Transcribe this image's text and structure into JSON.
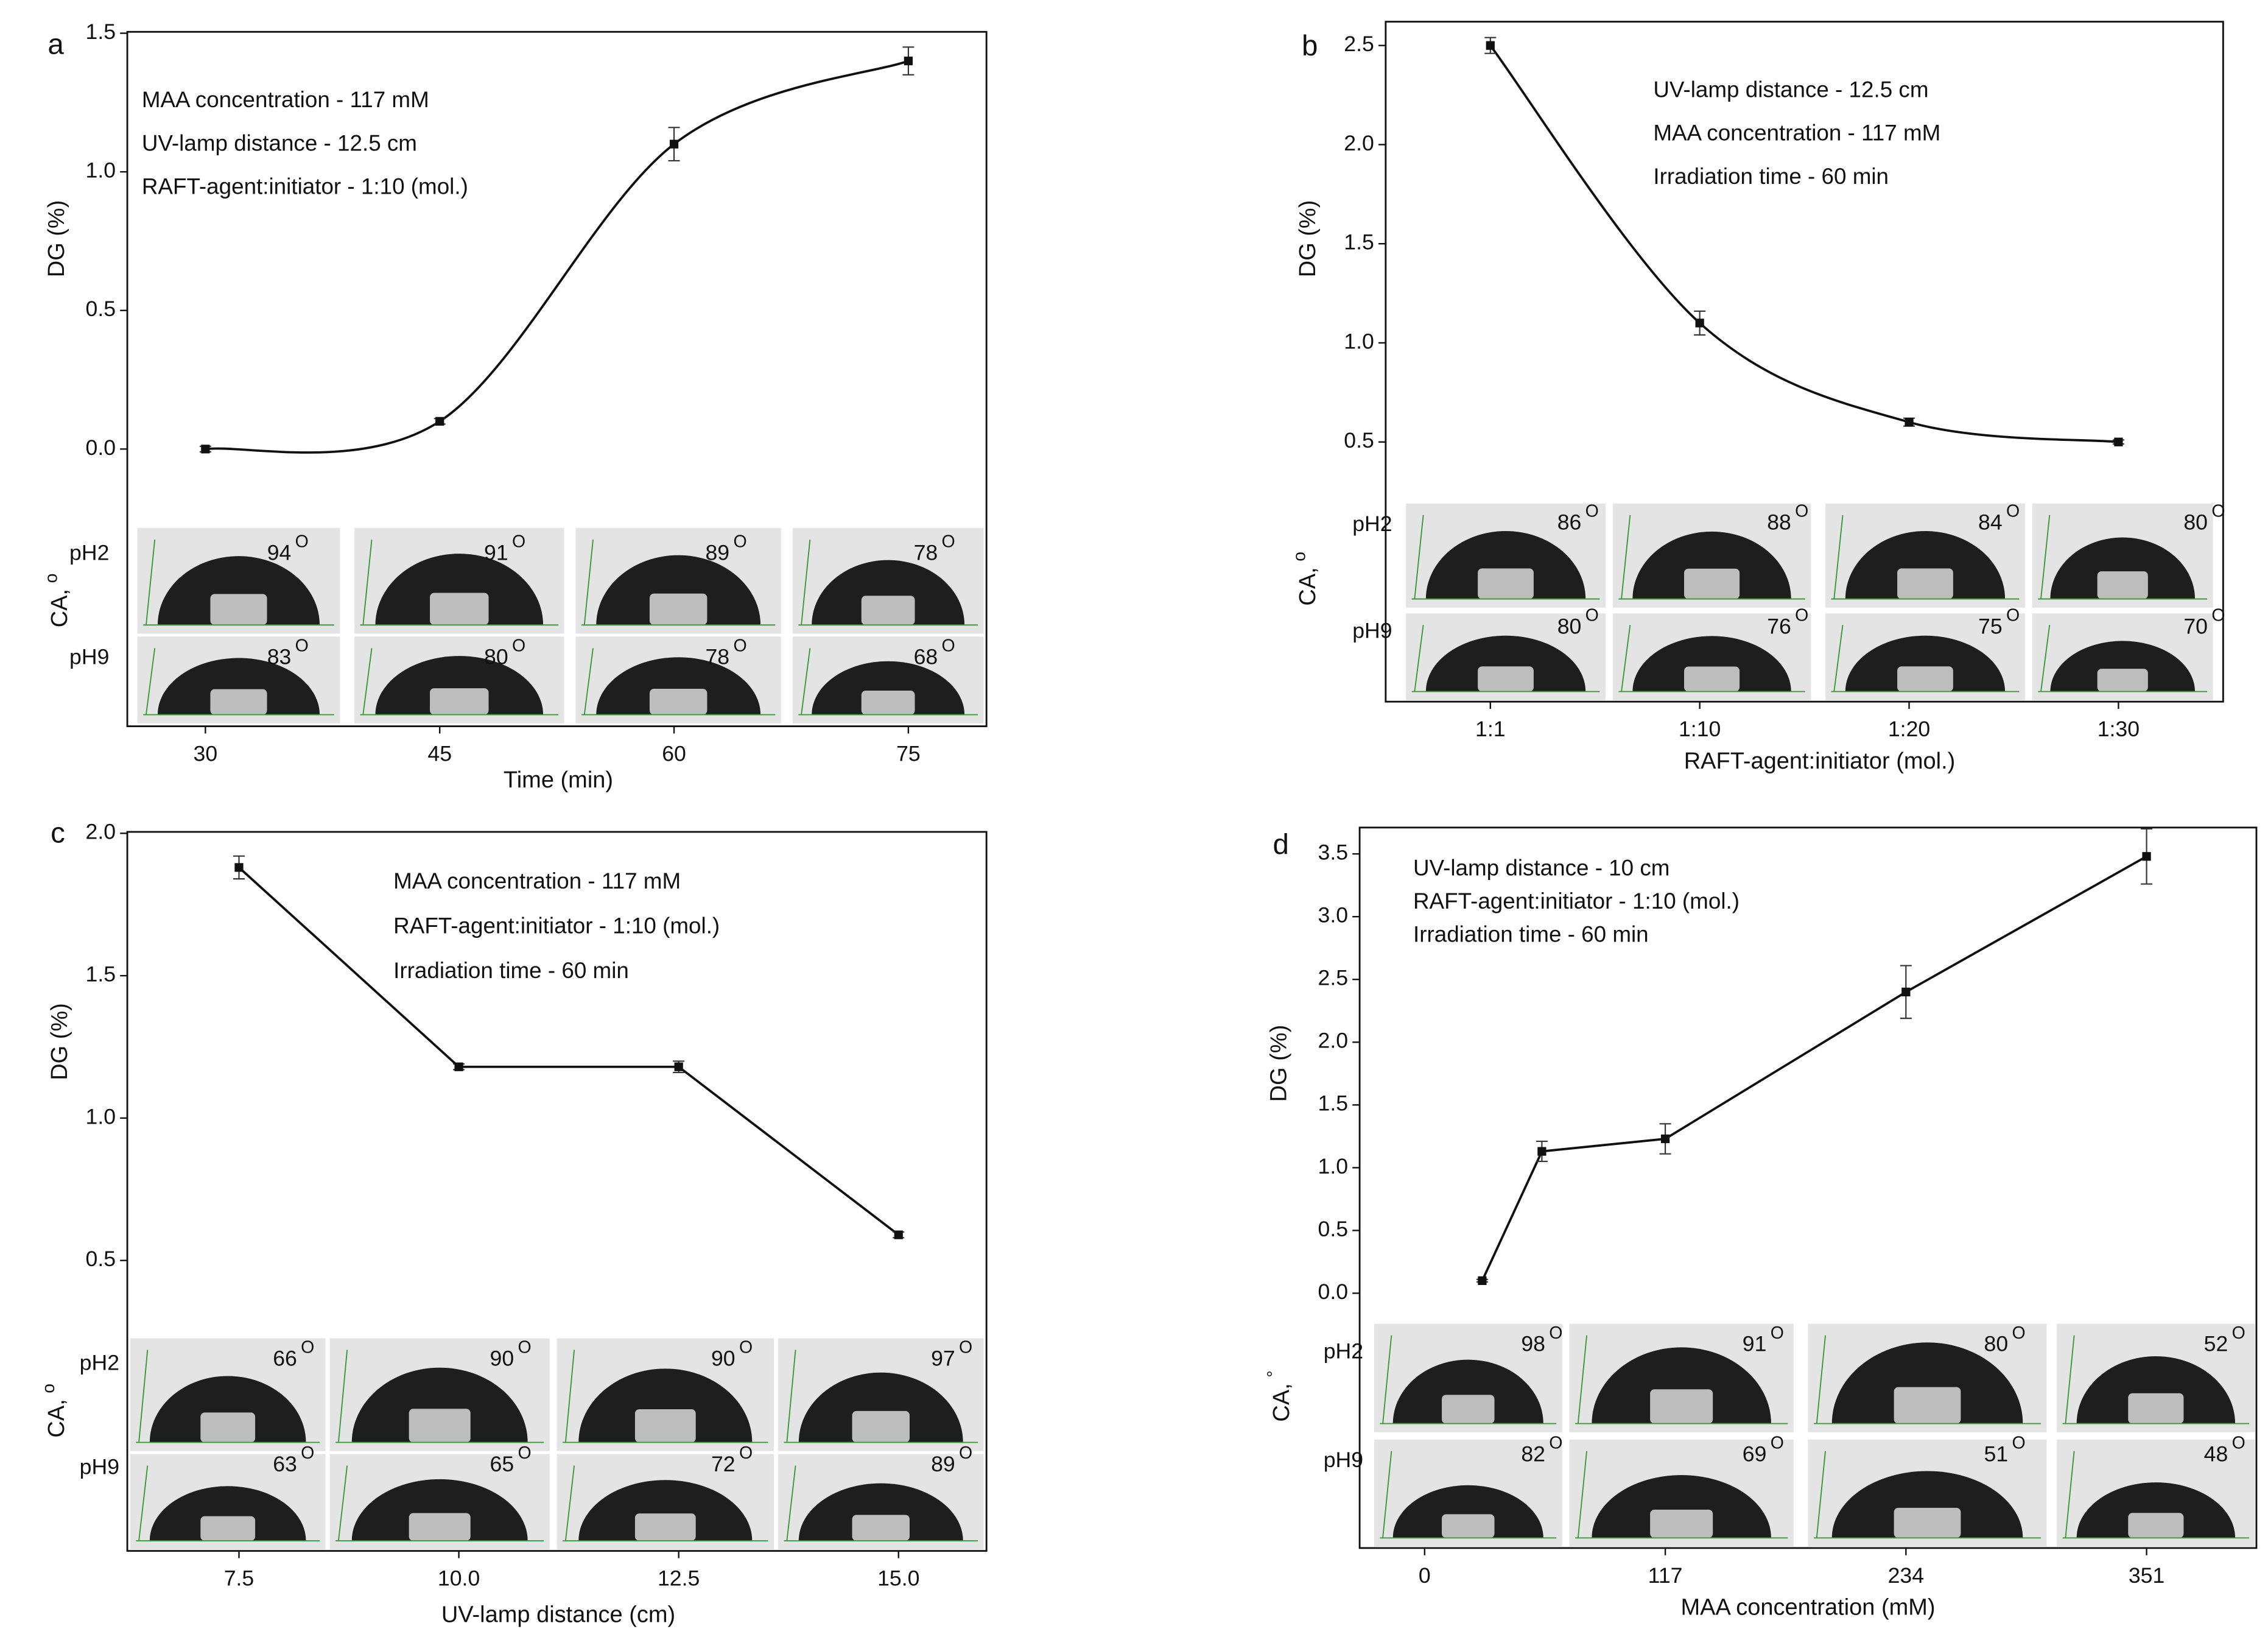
{
  "chart_data": [
    {
      "type": "line",
      "smooth": true,
      "panel": "a",
      "xlabel": "Time (min)",
      "ylabel": "DG (%)",
      "annotations": [
        "MAA concentration - 117 mM",
        "UV-lamp distance - 12.5 cm",
        "RAFT-agent:initiator - 1:10 (mol.)"
      ],
      "x": [
        30,
        45,
        60,
        75
      ],
      "values": [
        0,
        0.1,
        1.1,
        1.4
      ],
      "errors": [
        0.01,
        0.01,
        0.06,
        0.05
      ],
      "xlim": [
        25,
        80
      ],
      "xticks": [
        30,
        45,
        60,
        75
      ],
      "ylim": [
        -1.0,
        1.505
      ],
      "yticks": [
        {
          "value": 0,
          "label": "0.0"
        },
        0.5,
        {
          "value": 1,
          "label": "1.0"
        },
        1.5
      ],
      "ca_label": "CA,",
      "ca_unit": "o",
      "angle_unit": "O",
      "rows": [
        {
          "name": "pH2",
          "values": [
            94,
            91,
            89,
            78
          ]
        },
        {
          "name": "pH9",
          "values": [
            83,
            80,
            78,
            68
          ]
        }
      ]
    },
    {
      "type": "line",
      "smooth": true,
      "panel": "b",
      "xlabel": "RAFT-agent:initiator (mol.)",
      "ylabel": "DG (%)",
      "annotations": [
        "UV-lamp distance - 12.5 cm",
        "MAA concentration - 117 mM",
        "Irradiation time - 60 min"
      ],
      "categories": [
        "1:1",
        "1:10",
        "1:20",
        "1:30"
      ],
      "values": [
        2.5,
        1.1,
        0.6,
        0.5
      ],
      "errors": [
        0.04,
        0.06,
        0.02,
        0.01
      ],
      "ylim": [
        -0.81,
        2.62
      ],
      "yticks": [
        0.5,
        {
          "value": 1,
          "label": "1.0"
        },
        1.5,
        {
          "value": 2,
          "label": "2.0"
        },
        2.5
      ],
      "ca_label": "CA,",
      "ca_unit": "o",
      "angle_unit": "O",
      "rows": [
        {
          "name": "pH2",
          "values": [
            86,
            88,
            84,
            80
          ]
        },
        {
          "name": "pH9",
          "values": [
            80,
            76,
            75,
            70
          ]
        }
      ]
    },
    {
      "type": "line",
      "smooth": false,
      "panel": "c",
      "xlabel": "UV-lamp distance (cm)",
      "ylabel": "DG (%)",
      "annotations": [
        "MAA concentration - 117 mM",
        "RAFT-agent:initiator - 1:10 (mol.)",
        "Irradiation time - 60 min"
      ],
      "x": [
        7.5,
        10,
        12.5,
        15
      ],
      "values": [
        1.88,
        1.18,
        1.18,
        0.59
      ],
      "errors": [
        0.04,
        0.01,
        0.02,
        0.01
      ],
      "xlim": [
        6.23,
        16.0
      ],
      "xticks": [
        7.5,
        {
          "value": 10,
          "label": "10.0"
        },
        12.5,
        {
          "value": 15,
          "label": "15.0"
        }
      ],
      "ylim": [
        -0.52,
        2.005
      ],
      "yticks": [
        0.5,
        {
          "value": 1,
          "label": "1.0"
        },
        1.5,
        {
          "value": 2,
          "label": "2.0"
        }
      ],
      "ca_label": "CA,",
      "ca_unit": "o",
      "angle_unit": "O",
      "rows": [
        {
          "name": "pH2",
          "values": [
            66,
            90,
            90,
            97
          ]
        },
        {
          "name": "pH9",
          "values": [
            63,
            65,
            72,
            89
          ]
        }
      ]
    },
    {
      "type": "line",
      "smooth": false,
      "panel": "d",
      "xlabel": "MAA concentration (mM)",
      "ylabel": "DG (%)",
      "annotations": [
        "UV-lamp distance - 10 cm",
        "RAFT-agent:initiator - 1:10 (mol.)",
        "Irradiation time - 60 min"
      ],
      "x": [
        28,
        57,
        117,
        234,
        351
      ],
      "values": [
        0.1,
        1.13,
        1.23,
        2.4,
        3.48
      ],
      "errors": [
        0.01,
        0.08,
        0.12,
        0.21,
        0.22
      ],
      "xlim": [
        -31.6,
        404.4
      ],
      "xticks": [
        0,
        117,
        234,
        351
      ],
      "ylim": [
        -2.03,
        3.71
      ],
      "yticks": [
        {
          "value": 0,
          "label": "0.0"
        },
        0.5,
        {
          "value": 1,
          "label": "1.0"
        },
        1.5,
        {
          "value": 2,
          "label": "2.0"
        },
        2.5,
        {
          "value": 3,
          "label": "3.0"
        },
        3.5
      ],
      "ca_label": "CA,",
      "ca_unit": "°",
      "angle_unit": "O",
      "rows": [
        {
          "name": "pH2",
          "values": [
            98,
            91,
            80,
            52
          ]
        },
        {
          "name": "pH9",
          "values": [
            82,
            69,
            51,
            48
          ]
        }
      ]
    }
  ]
}
